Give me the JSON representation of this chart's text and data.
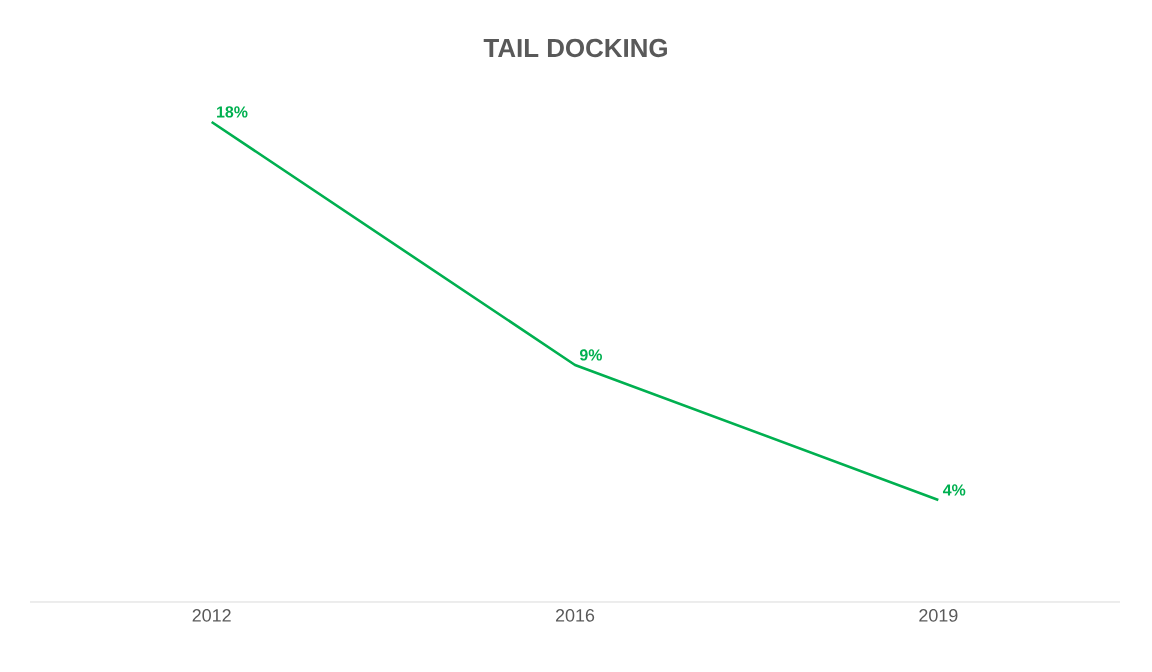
{
  "chart_data": {
    "type": "line",
    "title": "TAIL DOCKING",
    "categories": [
      "2012",
      "2016",
      "2019"
    ],
    "series": [
      {
        "color": "#00b050",
        "values": [
          18,
          9,
          4
        ],
        "value_labels": [
          "18%",
          "9%",
          "4%"
        ]
      }
    ],
    "tick_labels": "x",
    "line_style": "solid"
  }
}
